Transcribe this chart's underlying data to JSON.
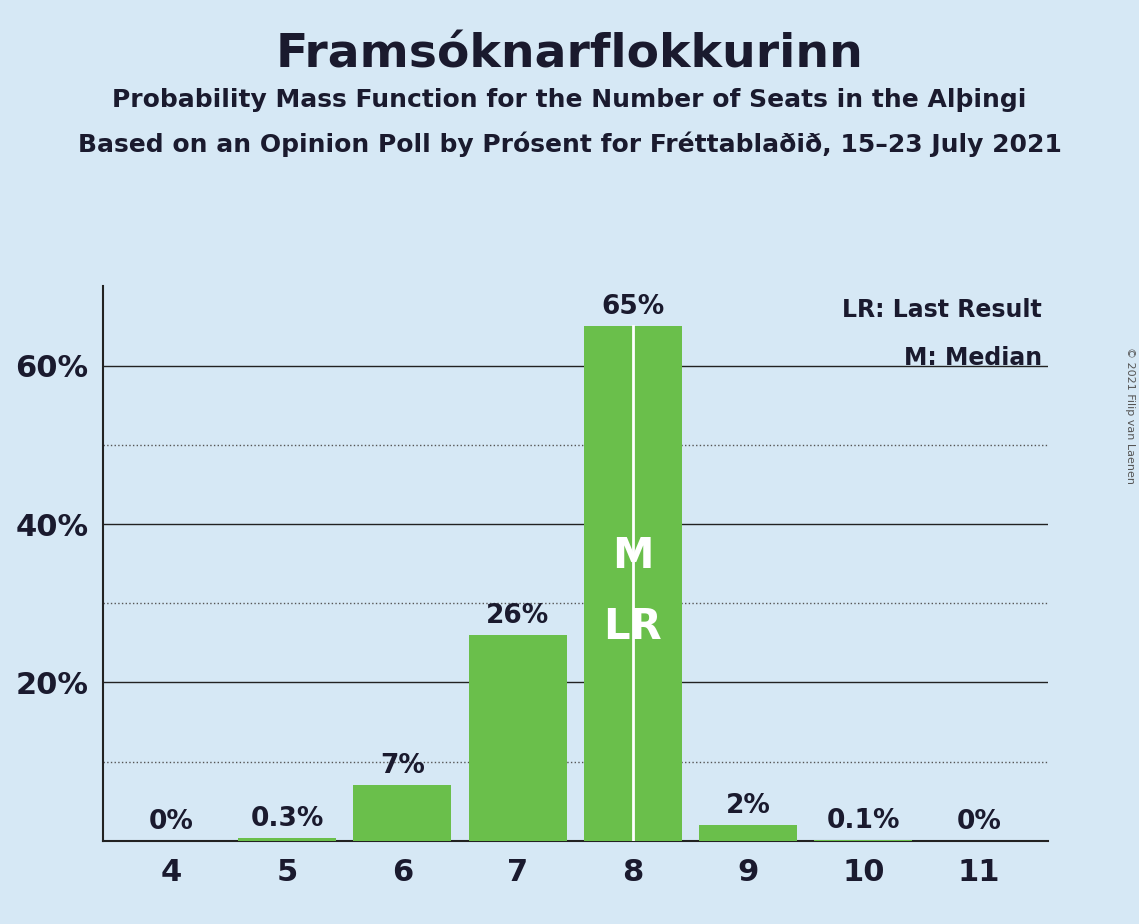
{
  "title": "Framsóknarflokkurinn",
  "subtitle1": "Probability Mass Function for the Number of Seats in the Alþingi",
  "subtitle2": "Based on an Opinion Poll by Prósent for Fréttablaðið, 15–23 July 2021",
  "copyright": "© 2021 Filip van Laenen",
  "categories": [
    4,
    5,
    6,
    7,
    8,
    9,
    10,
    11
  ],
  "values": [
    0.0,
    0.3,
    7.0,
    26.0,
    65.0,
    2.0,
    0.1,
    0.0
  ],
  "labels": [
    "0%",
    "0.3%",
    "7%",
    "26%",
    "65%",
    "2%",
    "0.1%",
    "0%"
  ],
  "bar_color": "#6abf4b",
  "background_color": "#d6e8f5",
  "text_color": "#1a1a2e",
  "median_seat": 8,
  "last_result_seat": 8,
  "legend_lr": "LR: Last Result",
  "legend_m": "M: Median",
  "ylim": [
    0,
    70
  ],
  "solid_yticks": [
    20,
    40,
    60
  ],
  "dotted_yticks": [
    10,
    30,
    50
  ],
  "ytick_labels_pos": [
    20,
    40,
    60
  ],
  "ytick_labels_str": [
    "20%",
    "40%",
    "60%"
  ]
}
